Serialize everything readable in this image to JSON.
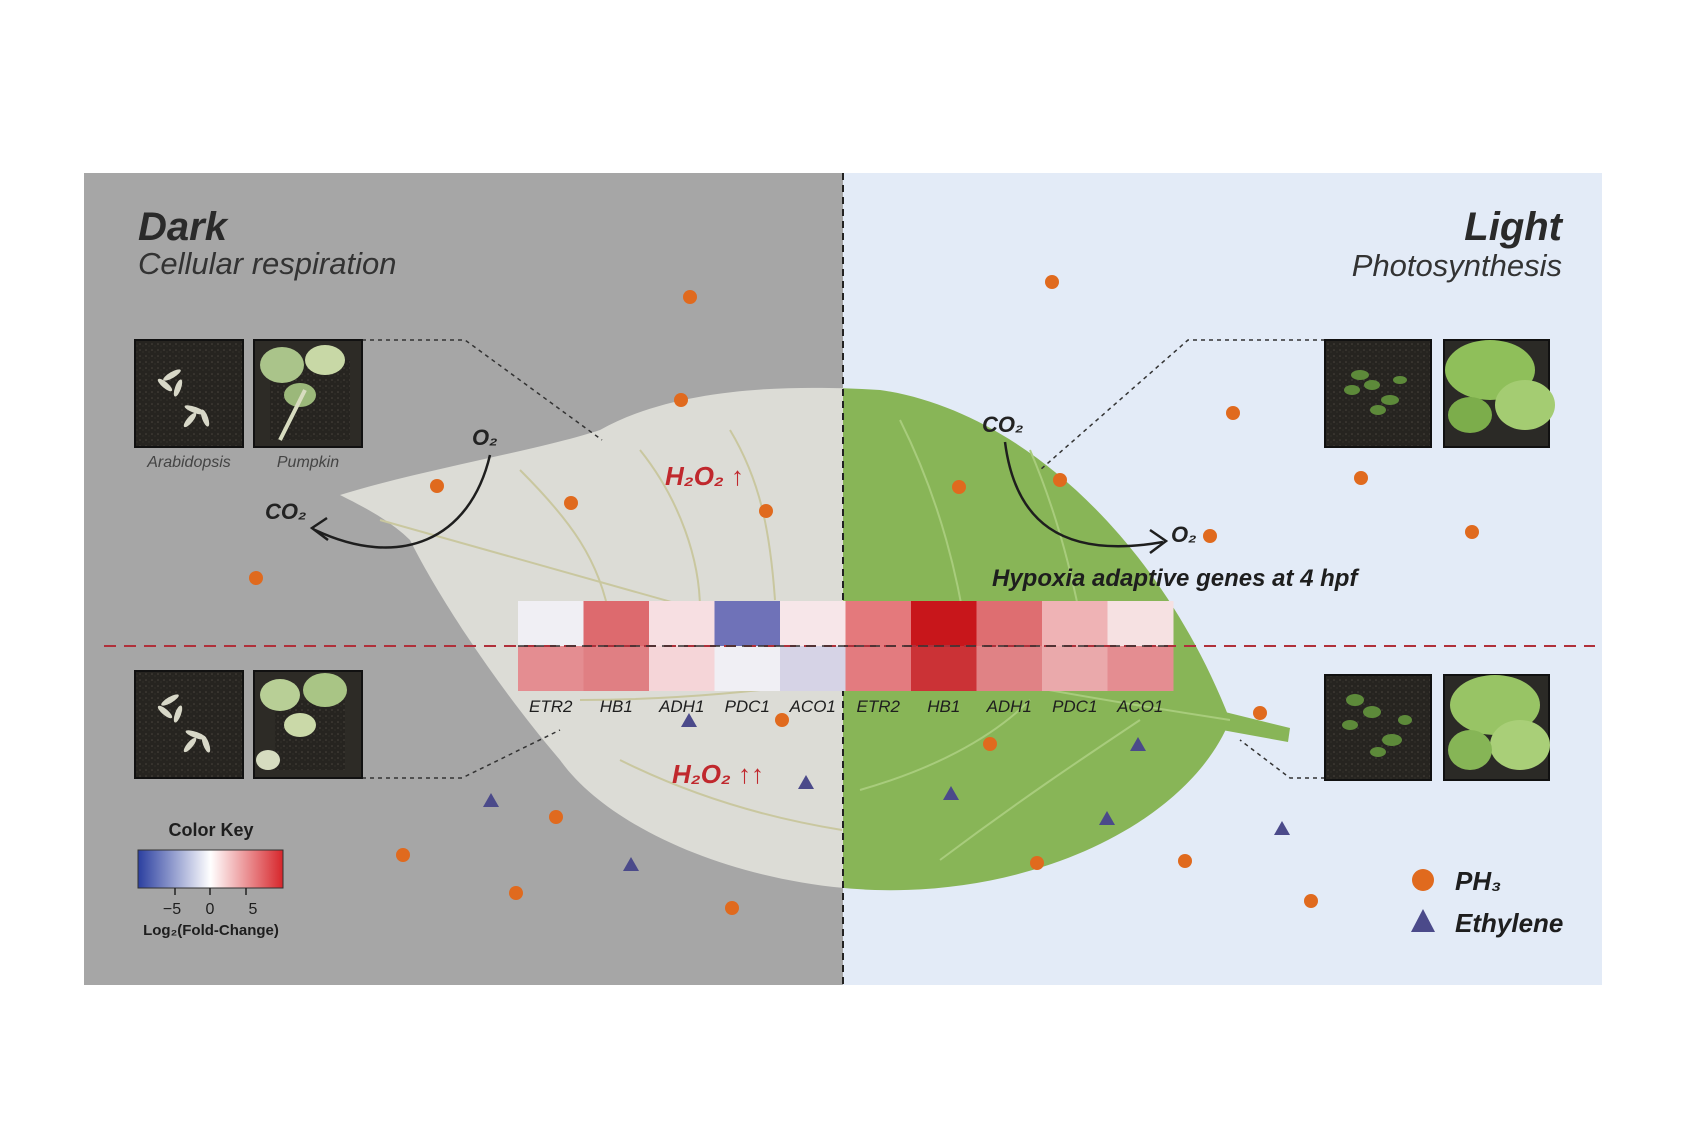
{
  "dark": {
    "title": "Dark",
    "subtitle": "Cellular respiration",
    "photo_labels": [
      "Arabidopsis",
      "Pumpkin"
    ],
    "gas_in": "O₂",
    "gas_out": "CO₂",
    "h2o2_top": "H₂O₂ ↑",
    "h2o2_bottom": "H₂O₂ ↑↑"
  },
  "light": {
    "title": "Light",
    "subtitle": "Photosynthesis",
    "gas_in": "CO₂",
    "gas_out": "O₂"
  },
  "heatmap": {
    "title": "Hypoxia adaptive genes at 4 hpf",
    "genes": [
      "ETR2",
      "HB1",
      "ADH1",
      "PDC1",
      "ACO1",
      "ETR2",
      "HB1",
      "ADH1",
      "PDC1",
      "ACO1"
    ],
    "top_row": [
      "#f0eff4",
      "#dd6a6e",
      "#f7dfe2",
      "#6f72b8",
      "#f7e6e9",
      "#e4797c",
      "#c8161b",
      "#de6e71",
      "#efb3b5",
      "#f6e1e2"
    ],
    "bottom_row": [
      "#e48d91",
      "#e07f83",
      "#f5d5d8",
      "#f0eff4",
      "#d6d3e6",
      "#e37b7f",
      "#cb3236",
      "#e08285",
      "#eaa9ab",
      "#e48d91"
    ]
  },
  "color_key": {
    "title": "Color Key",
    "ticks": [
      "−5",
      "0",
      "5"
    ],
    "label": "Log₂(Fold-Change)",
    "colors": [
      "#2b3fa0",
      "#ffffff",
      "#d7262b"
    ]
  },
  "legend": {
    "items": [
      {
        "label": "PH₃",
        "symbol": "circle",
        "color": "#e06a1e"
      },
      {
        "label": "Ethylene",
        "symbol": "triangle",
        "color": "#4b4a8a"
      }
    ]
  },
  "colors": {
    "dark_bg": "#a6a6a6",
    "light_bg": "#e3ebf7",
    "dark_leaf": "#dcdcd6",
    "light_leaf": "#88b557",
    "accent_red": "#c0282d"
  }
}
